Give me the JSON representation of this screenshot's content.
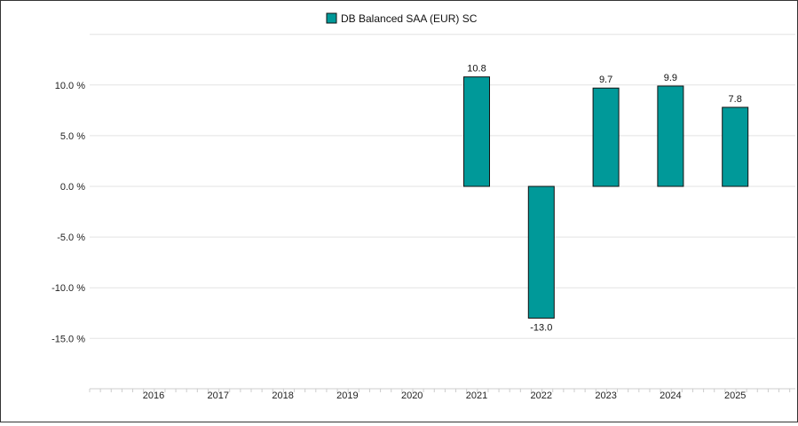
{
  "chart_data": {
    "type": "bar",
    "categories": [
      "2016",
      "2017",
      "2018",
      "2019",
      "2020",
      "2021",
      "2022",
      "2023",
      "2024",
      "2025"
    ],
    "series": [
      {
        "name": "DB Balanced SAA (EUR) SC",
        "values": [
          null,
          null,
          null,
          null,
          null,
          10.8,
          -13.0,
          9.7,
          9.9,
          7.8
        ],
        "labels": [
          "",
          "",
          "",
          "",
          "",
          "10.8",
          "-13.0",
          "9.7",
          "9.9",
          "7.8"
        ]
      }
    ],
    "yticks": [
      10,
      5,
      0,
      -5,
      -10,
      -15
    ],
    "ytick_labels": [
      "10.0 %",
      "5.0 %",
      "0.0 %",
      "-5.0 %",
      "-10.0 %",
      "-15.0 %"
    ],
    "ylim": [
      -20,
      15
    ],
    "grid": true,
    "legend_position": "top",
    "colors": {
      "bar": "#009999",
      "bar_border": "#111111",
      "grid": "#e3e3e3"
    }
  }
}
